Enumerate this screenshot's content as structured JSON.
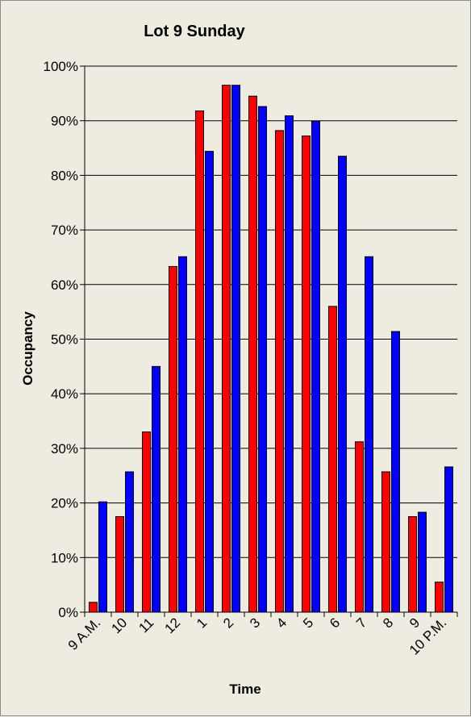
{
  "chart_data": {
    "type": "bar",
    "title": "Lot 9 Sunday",
    "xlabel": "Time",
    "ylabel": "Occupancy",
    "categories": [
      "9 A.M.",
      "10",
      "11",
      "12",
      "1",
      "2",
      "3",
      "4",
      "5",
      "6",
      "7",
      "8",
      "9",
      "10 P.M."
    ],
    "y_ticks": [
      "0%",
      "10%",
      "20%",
      "30%",
      "40%",
      "50%",
      "60%",
      "70%",
      "80%",
      "90%",
      "100%"
    ],
    "ylim": [
      0,
      100
    ],
    "grid": true,
    "legend": "none",
    "series": [
      {
        "color": "#ff0000",
        "values": [
          1.8,
          17.5,
          33.0,
          63.3,
          91.8,
          96.5,
          94.5,
          88.2,
          87.2,
          56.0,
          31.2,
          25.7,
          17.5,
          5.5
        ]
      },
      {
        "color": "#0000ff",
        "values": [
          20.2,
          25.7,
          45.0,
          65.1,
          84.4,
          96.5,
          92.6,
          90.9,
          89.9,
          83.5,
          65.1,
          51.4,
          18.3,
          26.6
        ]
      }
    ]
  }
}
